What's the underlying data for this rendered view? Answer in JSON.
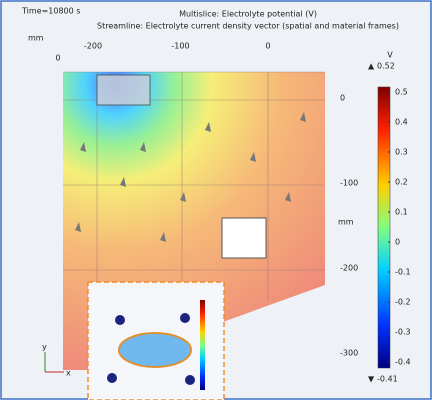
{
  "header": {
    "time": "Time=10800 s",
    "title": "Multislice: Electrolyte potential (V)",
    "subtitle": "Streamline: Electrolyte current density vector (spatial and material frames)",
    "unit": "mm"
  },
  "axes": {
    "top_ticks": [
      -200,
      -100,
      0
    ],
    "right_ticks": [
      0,
      -100,
      -200,
      -300
    ],
    "left_tick": 0,
    "right_unit": "mm"
  },
  "colorbar": {
    "unit": "V",
    "max": 0.52,
    "min": -0.41,
    "ticks": [
      0.5,
      0.4,
      0.3,
      0.2,
      0.1,
      0,
      -0.1,
      -0.2,
      -0.3,
      -0.4
    ]
  },
  "triad": {
    "y": "y",
    "x": "x"
  }
}
